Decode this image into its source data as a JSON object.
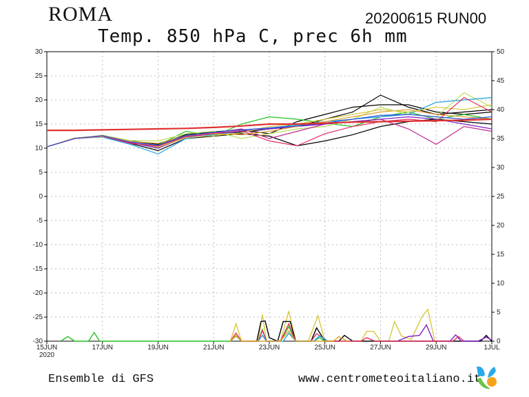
{
  "header": {
    "city": "ROMA",
    "run": "20200615 RUN00",
    "subtitle": "Temp. 850 hPa C, prec 6h mm"
  },
  "footer": {
    "ensemble": "Ensemble di GFS",
    "site": "www.centrometeoitaliano.it"
  },
  "chart_data": {
    "type": "line",
    "title": "Temp. 850 hPa C, prec 6h mm",
    "x_labels": [
      "15JUN",
      "17JUN",
      "19JUN",
      "21JUN",
      "23JUN",
      "25JUN",
      "27JUN",
      "29JUN",
      "1JUL"
    ],
    "x_year": "2020",
    "x_days": [
      "15JUN",
      "16JUN",
      "17JUN",
      "18JUN",
      "19JUN",
      "20JUN",
      "21JUN",
      "22JUN",
      "23JUN",
      "24JUN",
      "25JUN",
      "26JUN",
      "27JUN",
      "28JUN",
      "29JUN",
      "30JUN",
      "1JUL"
    ],
    "y_left": {
      "label": "Temp 850 hPa (C)",
      "range": [
        -30,
        30
      ],
      "ticks": [
        30,
        25,
        20,
        15,
        10,
        5,
        0,
        -5,
        -10,
        -15,
        -20,
        -25,
        -30
      ]
    },
    "y_right": {
      "label": "prec 6h (mm)",
      "range": [
        0,
        50
      ],
      "ticks": [
        50,
        45,
        40,
        35,
        30,
        25,
        20,
        15,
        10,
        5,
        0
      ]
    },
    "grid": true,
    "reference": {
      "color": "#e03030",
      "values": [
        13.7,
        13.7,
        13.8,
        13.9,
        14.0,
        14.1,
        14.3,
        14.6,
        15.0,
        15.0,
        15.2,
        15.4,
        15.5,
        15.6,
        15.7,
        15.8,
        16.0
      ]
    },
    "temperature_series": [
      {
        "color": "#000000",
        "values": [
          10.3,
          12.0,
          12.6,
          11.2,
          10.0,
          12.5,
          13.0,
          13.3,
          14.0,
          14.5,
          16.0,
          17.5,
          21.0,
          18.5,
          17.0,
          17.5,
          18.0
        ]
      },
      {
        "color": "#000000",
        "values": [
          10.3,
          12.0,
          12.5,
          11.0,
          9.5,
          12.0,
          12.5,
          13.0,
          12.5,
          10.5,
          11.5,
          12.8,
          14.5,
          15.5,
          16.0,
          15.5,
          15.0
        ]
      },
      {
        "color": "#000000",
        "values": [
          10.3,
          12.0,
          12.4,
          11.5,
          10.8,
          12.8,
          13.4,
          13.8,
          13.0,
          15.5,
          17.0,
          18.5,
          19.0,
          19.0,
          17.5,
          17.0,
          17.5
        ]
      },
      {
        "color": "#22c022",
        "values": [
          10.3,
          12.1,
          12.6,
          11.3,
          10.6,
          13.5,
          12.5,
          15.0,
          16.5,
          16.0,
          15.2,
          14.5,
          16.5,
          17.5,
          16.0,
          17.0,
          16.0
        ]
      },
      {
        "color": "#b8e05a",
        "values": [
          10.3,
          12.0,
          12.7,
          11.6,
          11.5,
          13.0,
          13.5,
          12.0,
          13.0,
          14.0,
          14.5,
          16.0,
          18.5,
          17.0,
          16.5,
          21.5,
          18.5
        ]
      },
      {
        "color": "#1ea0e0",
        "values": [
          10.3,
          12.0,
          12.3,
          10.8,
          8.8,
          12.0,
          12.8,
          13.5,
          14.2,
          14.8,
          15.5,
          16.0,
          16.5,
          17.0,
          19.5,
          20.0,
          20.5
        ]
      },
      {
        "color": "#c02890",
        "values": [
          10.3,
          12.0,
          12.5,
          11.0,
          10.5,
          12.5,
          13.2,
          14.0,
          12.0,
          13.5,
          15.0,
          15.5,
          16.0,
          14.0,
          10.8,
          14.5,
          13.5
        ]
      },
      {
        "color": "#8020c0",
        "values": [
          10.3,
          12.0,
          12.5,
          11.2,
          10.0,
          12.3,
          13.0,
          13.5,
          14.0,
          14.5,
          15.0,
          15.5,
          16.0,
          16.5,
          16.0,
          15.0,
          14.0
        ]
      },
      {
        "color": "#e0a030",
        "values": [
          10.3,
          12.1,
          12.6,
          11.4,
          11.0,
          12.6,
          13.0,
          12.8,
          13.5,
          14.5,
          15.5,
          16.5,
          17.5,
          18.0,
          17.0,
          16.5,
          16.0
        ]
      },
      {
        "color": "#d8c840",
        "values": [
          10.3,
          12.0,
          12.4,
          11.5,
          10.2,
          12.2,
          12.6,
          13.2,
          14.5,
          15.0,
          16.0,
          17.0,
          18.0,
          17.5,
          18.5,
          18.0,
          19.0
        ]
      },
      {
        "color": "#e03060",
        "values": [
          10.3,
          12.0,
          12.5,
          11.1,
          10.4,
          12.4,
          13.1,
          13.6,
          11.5,
          10.5,
          13.0,
          14.5,
          15.5,
          16.0,
          15.5,
          20.5,
          17.5
        ]
      },
      {
        "color": "#3050e0",
        "values": [
          10.3,
          12.0,
          12.6,
          11.3,
          10.6,
          12.6,
          13.3,
          13.8,
          14.2,
          14.6,
          15.2,
          16.0,
          16.8,
          17.0,
          16.5,
          16.0,
          16.5
        ]
      }
    ],
    "precip_series": [
      {
        "color": "#d8c840",
        "points": [
          [
            6.6,
            0
          ],
          [
            6.8,
            3.0
          ],
          [
            7.0,
            0
          ],
          [
            7.6,
            0
          ],
          [
            7.75,
            4.6
          ],
          [
            7.9,
            0
          ],
          [
            8.4,
            0
          ],
          [
            8.7,
            5.2
          ],
          [
            8.95,
            0
          ],
          [
            9.4,
            0
          ],
          [
            9.75,
            4.4
          ],
          [
            10.0,
            0
          ],
          [
            11.3,
            0
          ],
          [
            11.5,
            1.7
          ],
          [
            11.75,
            1.7
          ],
          [
            12.0,
            0
          ],
          [
            12.3,
            0
          ],
          [
            12.5,
            3.4
          ],
          [
            12.75,
            0.9
          ],
          [
            13.1,
            0.3
          ],
          [
            13.5,
            4.3
          ],
          [
            13.7,
            5.5
          ],
          [
            13.95,
            0
          ]
        ]
      },
      {
        "color": "#000000",
        "points": [
          [
            7.55,
            0
          ],
          [
            7.7,
            3.4
          ],
          [
            7.85,
            3.5
          ],
          [
            8.0,
            0.6
          ],
          [
            8.3,
            0
          ],
          [
            8.5,
            3.4
          ],
          [
            8.75,
            3.4
          ],
          [
            8.95,
            0
          ],
          [
            9.5,
            0
          ],
          [
            9.7,
            2.3
          ],
          [
            10.0,
            0
          ],
          [
            10.5,
            0
          ],
          [
            10.7,
            1.0
          ],
          [
            11.0,
            0
          ],
          [
            15.6,
            0
          ],
          [
            15.8,
            1.0
          ],
          [
            16.0,
            0
          ]
        ]
      },
      {
        "color": "#8020c0",
        "points": [
          [
            12.6,
            0
          ],
          [
            13.0,
            0.8
          ],
          [
            13.4,
            1.0
          ],
          [
            13.65,
            2.8
          ],
          [
            13.9,
            0
          ],
          [
            14.5,
            0
          ],
          [
            14.7,
            1.1
          ],
          [
            14.9,
            0
          ],
          [
            15.5,
            0
          ],
          [
            15.8,
            0.7
          ],
          [
            16.0,
            0.2
          ]
        ]
      },
      {
        "color": "#22c022",
        "points": [
          [
            0.5,
            0
          ],
          [
            0.75,
            0.8
          ],
          [
            1.0,
            0
          ],
          [
            1.5,
            0
          ],
          [
            1.7,
            1.5
          ],
          [
            1.9,
            0
          ],
          [
            6.6,
            0
          ],
          [
            6.8,
            0.9
          ],
          [
            7.0,
            0
          ],
          [
            7.6,
            0
          ],
          [
            7.75,
            2.0
          ],
          [
            7.9,
            0
          ],
          [
            8.4,
            0
          ],
          [
            8.7,
            2.5
          ],
          [
            8.95,
            0
          ],
          [
            9.6,
            0
          ],
          [
            9.8,
            0.6
          ],
          [
            10.0,
            0
          ]
        ]
      },
      {
        "color": "#e03060",
        "points": [
          [
            6.6,
            0
          ],
          [
            6.8,
            1.4
          ],
          [
            7.0,
            0
          ],
          [
            7.6,
            0
          ],
          [
            7.75,
            1.8
          ],
          [
            7.9,
            0
          ],
          [
            8.4,
            0
          ],
          [
            8.7,
            3.0
          ],
          [
            8.95,
            0
          ],
          [
            9.5,
            0
          ],
          [
            9.7,
            1.3
          ],
          [
            10.1,
            0
          ],
          [
            11.3,
            0
          ],
          [
            11.5,
            0.6
          ],
          [
            11.8,
            0
          ],
          [
            14.6,
            0
          ],
          [
            14.8,
            0.8
          ],
          [
            15.0,
            0
          ]
        ]
      },
      {
        "color": "#1ea0e0",
        "points": [
          [
            7.6,
            0
          ],
          [
            7.75,
            1.0
          ],
          [
            7.9,
            0
          ],
          [
            8.5,
            0
          ],
          [
            8.7,
            1.4
          ],
          [
            8.95,
            0
          ],
          [
            9.6,
            0
          ],
          [
            9.8,
            0.9
          ],
          [
            10.1,
            0
          ]
        ]
      },
      {
        "color": "#e0a030",
        "points": [
          [
            6.6,
            0
          ],
          [
            6.8,
            1.0
          ],
          [
            7.0,
            0
          ],
          [
            8.4,
            0
          ],
          [
            8.7,
            1.8
          ],
          [
            8.95,
            0
          ],
          [
            10.3,
            0
          ],
          [
            10.5,
            0.8
          ],
          [
            10.8,
            0
          ]
        ]
      }
    ]
  }
}
